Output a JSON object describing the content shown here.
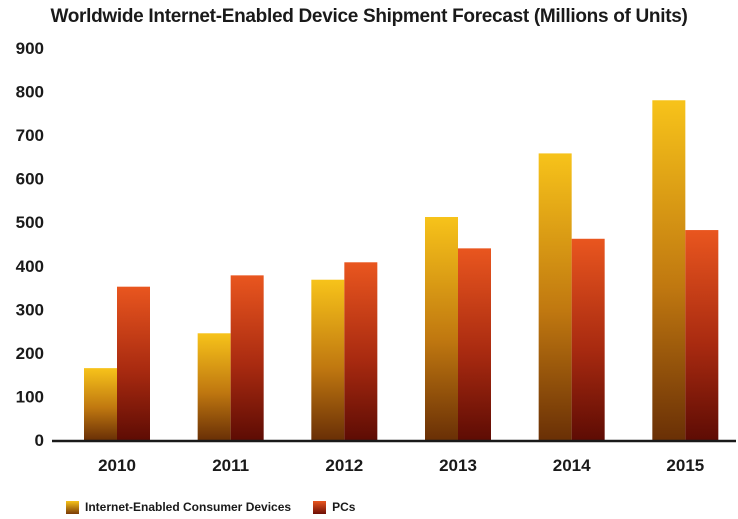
{
  "chart_data": {
    "type": "bar",
    "title": "Worldwide Internet-Enabled Device Shipment Forecast (Millions of Units)",
    "categories": [
      "2010",
      "2011",
      "2012",
      "2013",
      "2014",
      "2015"
    ],
    "series": [
      {
        "name": "Internet-Enabled Consumer Devices",
        "values": [
          165,
          245,
          368,
          512,
          658,
          780
        ],
        "color": "#f2b90f"
      },
      {
        "name": "PCs",
        "values": [
          352,
          378,
          408,
          440,
          462,
          482
        ],
        "color": "#d9471a"
      }
    ],
    "ylim": [
      0,
      900
    ],
    "yticks": [
      0,
      100,
      200,
      300,
      400,
      500,
      600,
      700,
      800,
      900
    ],
    "xlabel": "",
    "ylabel": "",
    "grid": false,
    "legend_position": "bottom-left"
  }
}
